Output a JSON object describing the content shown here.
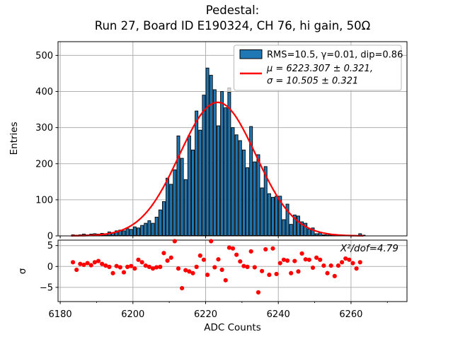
{
  "figure": {
    "background": "#ffffff"
  },
  "chart_data": {
    "type": "bar",
    "title": "Pedestal:",
    "subtitle": "Run 27, Board ID E190324, CH 76, hi gain, 50Ω",
    "xlabel": "ADC Counts",
    "ylabel": "Entries",
    "grid": true,
    "bin_start": 6183,
    "bin_width": 1,
    "values": [
      3,
      2,
      3,
      5,
      3,
      5,
      6,
      5,
      7,
      6,
      11,
      9,
      14,
      16,
      14,
      20,
      18,
      25,
      22,
      29,
      35,
      42,
      35,
      52,
      72,
      95,
      160,
      143,
      183,
      277,
      215,
      156,
      277,
      238,
      346,
      293,
      390,
      465,
      445,
      405,
      305,
      400,
      355,
      398,
      300,
      280,
      264,
      238,
      189,
      303,
      205,
      225,
      133,
      192,
      117,
      107,
      110,
      110,
      45,
      88,
      32,
      58,
      55,
      39,
      35,
      19,
      22,
      6,
      9,
      3,
      6,
      3,
      3,
      2,
      3,
      2,
      1,
      2,
      1,
      6,
      2
    ],
    "xlim": [
      6179.4,
      6275.4
    ],
    "ylim": [
      0,
      538
    ],
    "xticks": [
      6180,
      6200,
      6220,
      6240,
      6260
    ],
    "xticks_minor": [
      6190,
      6210,
      6230,
      6250,
      6270
    ],
    "yticks": [
      0,
      100,
      200,
      300,
      400,
      500
    ],
    "fit": {
      "type": "gaussian",
      "mu": 6223.307,
      "sigma": 10.505,
      "amplitude": 370,
      "x_range": [
        6183,
        6263.5
      ]
    },
    "ghost_bin": {
      "x": 6226,
      "from": 398,
      "to": 410
    },
    "residuals": {
      "ylabel": "σ",
      "yticks": [
        5,
        0,
        -5
      ],
      "ylim": [
        -8.4,
        6.3
      ],
      "x_start": 6183.5,
      "sigma": [
        1.0,
        -0.8,
        0.6,
        0.4,
        0.8,
        0.3,
        1.0,
        1.3,
        0.6,
        0.2,
        -0.1,
        -1.6,
        0.1,
        -0.2,
        -1.4,
        -0.1,
        0.1,
        -0.5,
        1.6,
        1.0,
        0.2,
        -0.1,
        -0.5,
        -0.2,
        -0.1,
        3.2,
        1.4,
        2.1,
        6.2,
        -0.5,
        -5.2,
        -0.9,
        -1.2,
        -1.6,
        -0.1,
        2.6,
        1.6,
        -2.0,
        6.2,
        -0.2,
        1.7,
        -0.8,
        -3.3,
        4.5,
        4.3,
        2.8,
        1.2,
        0.1,
        -0.1,
        3.6,
        -0.2,
        -6.2,
        -1.1,
        4.1,
        -2.0,
        4.3,
        -1.8,
        0.8,
        1.6,
        1.4,
        -1.6,
        1.3,
        -1.2,
        3.1,
        1.7,
        1.6,
        -0.3,
        2.1,
        1.6,
        0.2,
        -1.6,
        0.2,
        -2.3,
        0.2,
        1.0,
        1.9,
        1.6,
        0.8,
        -0.5,
        1.0
      ],
      "annotation": "X²/dof=4.79"
    },
    "legend": {
      "position": "upper right",
      "entries": [
        {
          "swatch": "bar",
          "label": "RMS=10.5, γ=0.01, dip=0.86"
        },
        {
          "swatch": "line",
          "label": "μ = 6223.307 ± 0.321,",
          "label2": "σ = 10.505 ± 0.321"
        }
      ]
    },
    "colors": {
      "bar_fill": "#1f77b4",
      "bar_edge": "#000000",
      "fit_line": "#ff0000",
      "residual_dots": "#ff0000",
      "grid": "#b0b0b0",
      "spine": "#000000",
      "ghost": "#d9d9d9",
      "legend_border": "#b8b8b8"
    }
  }
}
